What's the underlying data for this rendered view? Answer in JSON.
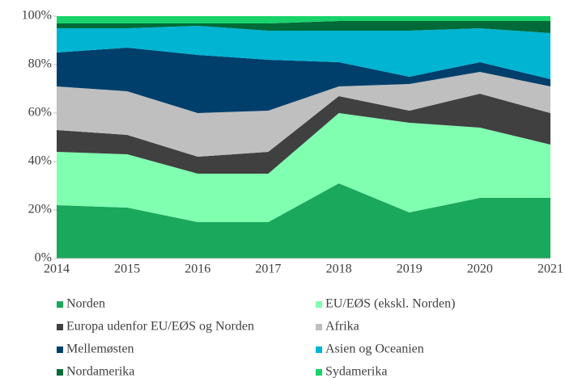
{
  "chart_data": {
    "type": "stacked_area",
    "categories": [
      "2014",
      "2015",
      "2016",
      "2017",
      "2018",
      "2019",
      "2020",
      "2021"
    ],
    "series": [
      {
        "name": "Norden",
        "color": "#1aa85c",
        "values": [
          22,
          21,
          15,
          15,
          31,
          19,
          25,
          25
        ]
      },
      {
        "name": "EU/EØS (ekskl. Norden)",
        "color": "#80ffb0",
        "values": [
          22,
          22,
          20,
          20,
          29,
          37,
          29,
          22
        ]
      },
      {
        "name": "Europa udenfor EU/EØS og Norden",
        "color": "#404040",
        "values": [
          9,
          8,
          7,
          9,
          7,
          5,
          14,
          13
        ]
      },
      {
        "name": "Afrika",
        "color": "#bfbfbf",
        "values": [
          18,
          18,
          18,
          17,
          4,
          11,
          9,
          11
        ]
      },
      {
        "name": "Mellemøsten",
        "color": "#003f6b",
        "values": [
          14,
          18,
          24,
          21,
          10,
          3,
          4,
          3
        ]
      },
      {
        "name": "Asien og Oceanien",
        "color": "#00b4d2",
        "values": [
          10,
          8,
          12,
          12,
          13,
          19,
          14,
          19
        ]
      },
      {
        "name": "Nordamerika",
        "color": "#006b38",
        "values": [
          2,
          2,
          1,
          3,
          4,
          4,
          3,
          5
        ]
      },
      {
        "name": "Sydamerika",
        "color": "#19d36a",
        "values": [
          3,
          3,
          3,
          3,
          2,
          2,
          2,
          2
        ]
      }
    ],
    "ylim": [
      0,
      100
    ],
    "yticks": [
      {
        "value": 0,
        "label": "0%"
      },
      {
        "value": 20,
        "label": "20%"
      },
      {
        "value": 40,
        "label": "40%"
      },
      {
        "value": 60,
        "label": "60%"
      },
      {
        "value": 80,
        "label": "80%"
      },
      {
        "value": 100,
        "label": "100%"
      }
    ],
    "legend": "bottom"
  }
}
